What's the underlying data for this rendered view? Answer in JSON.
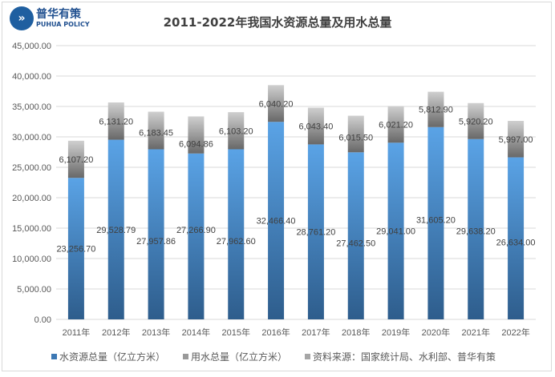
{
  "chart_data": {
    "type": "bar",
    "stacked": true,
    "title": "2011-2022年我国水资源总量及用水总量",
    "categories": [
      "2011年",
      "2012年",
      "2013年",
      "2014年",
      "2015年",
      "2016年",
      "2017年",
      "2018年",
      "2019年",
      "2020年",
      "2021年",
      "2022年"
    ],
    "series": [
      {
        "name": "水资源总量（亿立方米）",
        "color": "#4a8fd6",
        "values": [
          23256.7,
          29528.79,
          27957.86,
          27266.9,
          27962.6,
          32466.4,
          28761.2,
          27462.5,
          29041.0,
          31605.2,
          29638.2,
          26634.0
        ],
        "labels": [
          "23,256.70",
          "29,528.79",
          "27,957.86",
          "27,266.90",
          "27,962.60",
          "32,466.40",
          "28,761.20",
          "27,462.50",
          "29,041.00",
          "31,605.20",
          "29,638.20",
          "26,634.00"
        ]
      },
      {
        "name": "用水总量（亿立方米）",
        "color": "#9a9a9a",
        "values": [
          6107.2,
          6131.2,
          6183.45,
          6094.86,
          6103.2,
          6040.2,
          6043.4,
          6015.5,
          6021.2,
          5812.9,
          5920.2,
          5997.0
        ],
        "labels": [
          "6,107.20",
          "6,131.20",
          "6,183.45",
          "6,094.86",
          "6,103.20",
          "6,040.20",
          "6,043.40",
          "6,015.50",
          "6,021.20",
          "5,812.90",
          "5,920.20",
          "5,997.00"
        ]
      }
    ],
    "ylim": [
      0,
      45000
    ],
    "yticks": [
      "0.00",
      "5,000.00",
      "10,000.00",
      "15,000.00",
      "20,000.00",
      "25,000.00",
      "30,000.00",
      "35,000.00",
      "40,000.00",
      "45,000.00"
    ],
    "grid": true,
    "legend_position": "bottom",
    "source_note": "资料来源：国家统计局、水利部、普华有策"
  },
  "logo": {
    "cn": "普华有策",
    "en": "PUHUA POLICY"
  }
}
